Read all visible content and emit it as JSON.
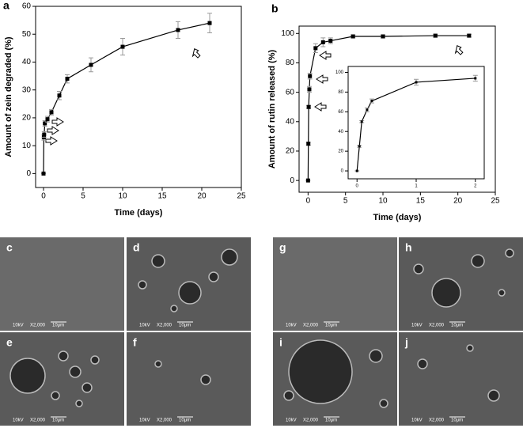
{
  "figure_labels": [
    "a",
    "b"
  ],
  "chart_data": [
    {
      "type": "line",
      "y_label": "Amount of zein degraded (%)",
      "x_label": "Time (days)",
      "x": [
        0,
        0.04,
        0.08,
        0.17,
        0.5,
        1,
        2,
        3,
        6,
        10,
        17,
        21
      ],
      "series": [
        {
          "color": "#000000",
          "values": [
            0,
            13,
            14,
            18,
            19.5,
            22,
            28,
            34,
            39,
            45.5,
            51.5,
            54
          ],
          "errors": [
            0,
            1,
            1,
            1,
            1,
            1,
            1.5,
            1.5,
            2.5,
            3,
            3,
            3.5
          ]
        }
      ],
      "xlim": [
        -1,
        25
      ],
      "ylim": [
        -5,
        60
      ],
      "xticks": [
        0,
        5,
        10,
        15,
        20,
        25
      ],
      "yticks": [
        0,
        10,
        20,
        30,
        40,
        50,
        60
      ]
    },
    {
      "type": "line",
      "y_label": "Amount of rutin released (%)",
      "x_label": "Time (days)",
      "x": [
        0,
        0.04,
        0.08,
        0.17,
        0.25,
        1,
        2,
        3,
        6,
        10,
        17,
        21.5
      ],
      "series": [
        {
          "color": "#000000",
          "values": [
            0,
            25,
            50,
            62,
            71,
            90,
            94,
            95,
            98,
            98,
            98.5,
            98.5
          ],
          "errors": [
            0,
            1,
            1,
            2,
            2,
            3,
            3,
            2,
            1,
            1,
            1,
            1
          ]
        }
      ],
      "xlim": [
        -1.2,
        25
      ],
      "ylim": [
        -8,
        105
      ],
      "xticks": [
        0,
        5,
        10,
        15,
        20,
        25
      ],
      "yticks": [
        0,
        20,
        40,
        60,
        80,
        100
      ]
    },
    {
      "type": "line",
      "x": [
        0,
        0.04,
        0.08,
        0.17,
        0.25,
        1,
        2
      ],
      "series": [
        {
          "color": "#000000",
          "values": [
            0,
            25,
            50,
            62,
            71,
            90,
            94
          ],
          "errors": [
            0,
            1,
            1,
            2,
            2,
            3,
            3
          ]
        }
      ],
      "xlim": [
        -0.15,
        2.15
      ],
      "ylim": [
        -8,
        106
      ],
      "xticks": [
        0,
        1,
        2
      ],
      "yticks": [
        0,
        20,
        40,
        60,
        80,
        100
      ]
    }
  ],
  "panels": [
    {
      "label": "c",
      "voltage": "10kV",
      "magnification": "X2,000",
      "scale": "10μm"
    },
    {
      "label": "d",
      "voltage": "10kV",
      "magnification": "X2,000",
      "scale": "10μm"
    },
    {
      "label": "e",
      "voltage": "10kV",
      "magnification": "X2,000",
      "scale": "10μm"
    },
    {
      "label": "f",
      "voltage": "10kV",
      "magnification": "X2,000",
      "scale": "10μm"
    },
    {
      "label": "g",
      "voltage": "10kV",
      "magnification": "X2,000",
      "scale": "10μm"
    },
    {
      "label": "h",
      "voltage": "10kV",
      "magnification": "X2,000",
      "scale": "10μm"
    },
    {
      "label": "i",
      "voltage": "10kV",
      "magnification": "X2,000",
      "scale": "10μm"
    },
    {
      "label": "j",
      "voltage": "10kV",
      "magnification": "X2,000",
      "scale": "10μm"
    }
  ]
}
